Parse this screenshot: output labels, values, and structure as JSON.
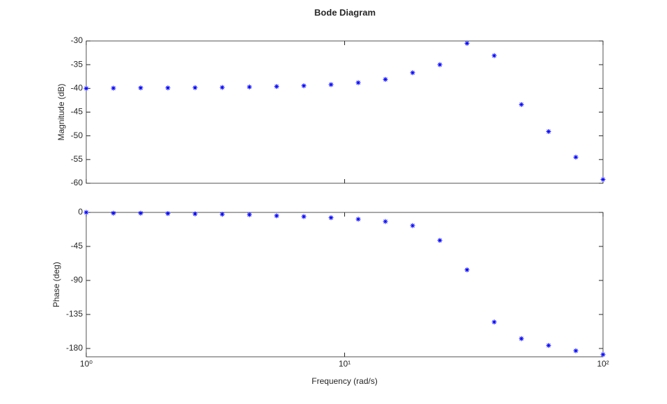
{
  "chart_data": [
    {
      "type": "scatter",
      "title": "Bode Diagram",
      "ylabel": "Magnitude (dB)",
      "xscale": "log",
      "grid": false,
      "x": [
        1,
        1.274,
        1.624,
        2.069,
        2.637,
        3.36,
        4.281,
        5.456,
        6.952,
        8.859,
        11.29,
        14.38,
        18.33,
        23.36,
        29.76,
        37.93,
        48.33,
        61.58,
        78.48,
        100
      ],
      "xlim": [
        1,
        100
      ],
      "series": [
        {
          "color": "#0000ff",
          "values": [
            -40,
            -39.95,
            -39.9,
            -39.9,
            -39.85,
            -39.8,
            -39.7,
            -39.6,
            -39.45,
            -39.2,
            -38.8,
            -38.1,
            -36.7,
            -35,
            -30.5,
            -33.1,
            -43.4,
            -49.1,
            -54.5,
            -59.2
          ]
        }
      ],
      "ylim": [
        -60,
        -30
      ],
      "yticks": [
        -30,
        -35,
        -40,
        -45,
        -50,
        -55,
        -60
      ]
    },
    {
      "type": "scatter",
      "ylabel": "Phase (deg)",
      "xlabel": "Frequency (rad/s)",
      "xscale": "log",
      "grid": false,
      "x": [
        1,
        1.274,
        1.624,
        2.069,
        2.637,
        3.36,
        4.281,
        5.456,
        6.952,
        8.859,
        11.29,
        14.38,
        18.33,
        23.36,
        29.76,
        37.93,
        48.33,
        61.58,
        78.48,
        100
      ],
      "xlim": [
        1,
        100
      ],
      "xticks": [
        {
          "value": 1,
          "label": "10⁰"
        },
        {
          "value": 10,
          "label": "10¹"
        },
        {
          "value": 100,
          "label": "10²"
        }
      ],
      "series": [
        {
          "color": "#0000ff",
          "values": [
            0,
            -1,
            -1,
            -1.5,
            -2,
            -2.5,
            -3,
            -4.5,
            -5.5,
            -7,
            -9,
            -12,
            -17.5,
            -37,
            -76,
            -145,
            -167,
            -176,
            -183,
            -188
          ]
        }
      ],
      "ylim": [
        -191,
        0
      ],
      "yticks": [
        0,
        -45,
        -90,
        -135,
        -180
      ]
    }
  ]
}
